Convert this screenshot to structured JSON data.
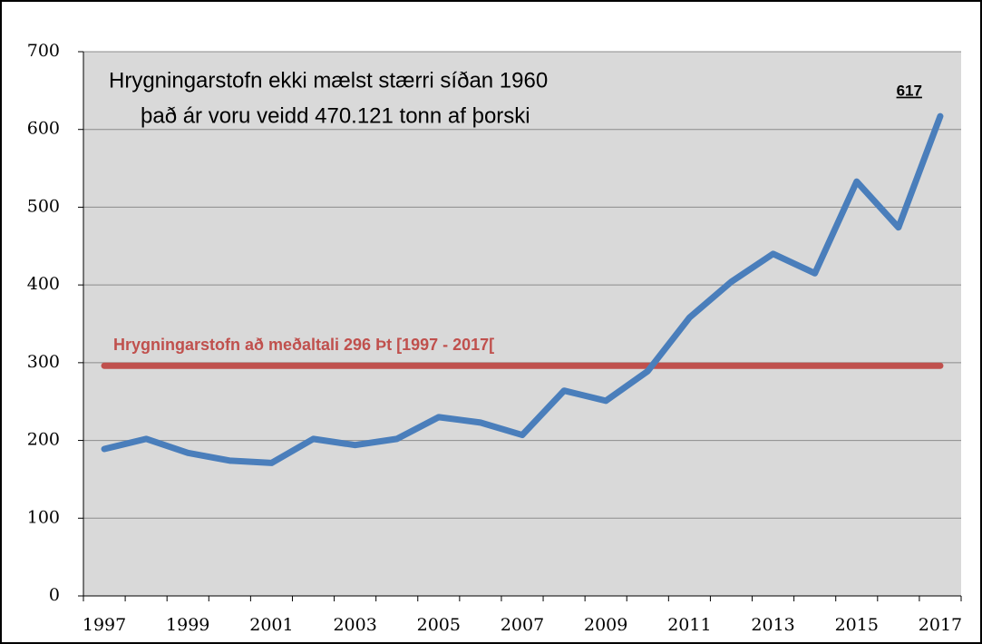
{
  "chart_data": {
    "type": "line",
    "title": "Hrygningarstofn ekki mælst stærri síðan 1960",
    "subtitle": "það ár voru veidd 470.121 tonn af þorski",
    "categories": [
      "1997",
      null,
      "1999",
      null,
      "2001",
      null,
      "2003",
      null,
      "2005",
      null,
      "2007",
      null,
      "2009",
      null,
      "2011",
      null,
      "2013",
      null,
      "2015",
      null,
      "2017"
    ],
    "values": [
      189,
      202,
      184,
      174,
      171,
      202,
      194,
      202,
      230,
      223,
      207,
      264,
      251,
      289,
      358,
      404,
      440,
      415,
      533,
      474,
      617
    ],
    "color": "#4a7ebb",
    "reference_line": {
      "value": 296,
      "label": "Hrygningarstofn að meðaltali 296 Þt [1997 - 2017[",
      "color": "#c0504d"
    },
    "ylim": [
      0,
      700
    ],
    "yticks": [
      0,
      100,
      200,
      300,
      400,
      500,
      600,
      700
    ],
    "grid": true
  }
}
